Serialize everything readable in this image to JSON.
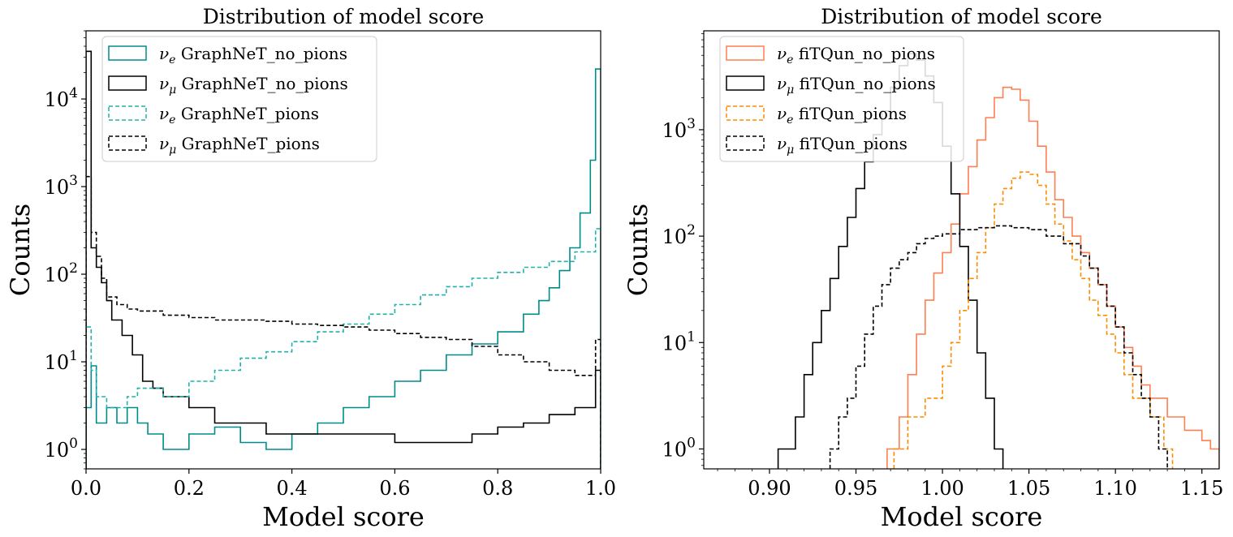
{
  "chart_data": [
    {
      "type": "histogram",
      "title": "Distribution of model score",
      "xlabel": "Model score",
      "ylabel": "Counts",
      "yscale": "log",
      "xlim": [
        0.0,
        1.0
      ],
      "ylim": [
        0.6,
        60000
      ],
      "xticks": [
        "0.0",
        "0.2",
        "0.4",
        "0.6",
        "0.8",
        "1.0"
      ],
      "xtick_values": [
        0.0,
        0.2,
        0.4,
        0.6,
        0.8,
        1.0
      ],
      "yticks": [
        {
          "base": "10",
          "exp": "0",
          "value": 1
        },
        {
          "base": "10",
          "exp": "1",
          "value": 10
        },
        {
          "base": "10",
          "exp": "2",
          "value": 100
        },
        {
          "base": "10",
          "exp": "3",
          "value": 1000
        },
        {
          "base": "10",
          "exp": "4",
          "value": 10000
        }
      ],
      "legend_position": "top-left",
      "series": [
        {
          "name": "GraphNeT_no_pions",
          "nu": "e",
          "color": "#008b8b",
          "dashed": false,
          "points": [
            [
              0.0,
              3
            ],
            [
              0.01,
              9
            ],
            [
              0.02,
              2
            ],
            [
              0.04,
              3
            ],
            [
              0.06,
              2
            ],
            [
              0.08,
              3
            ],
            [
              0.1,
              2
            ],
            [
              0.12,
              1.5
            ],
            [
              0.15,
              1
            ],
            [
              0.2,
              1.5
            ],
            [
              0.25,
              1.8
            ],
            [
              0.3,
              1.2
            ],
            [
              0.35,
              1
            ],
            [
              0.4,
              1.5
            ],
            [
              0.45,
              2
            ],
            [
              0.5,
              3
            ],
            [
              0.55,
              4
            ],
            [
              0.6,
              6
            ],
            [
              0.65,
              8
            ],
            [
              0.7,
              12
            ],
            [
              0.75,
              16
            ],
            [
              0.8,
              22
            ],
            [
              0.85,
              35
            ],
            [
              0.88,
              50
            ],
            [
              0.9,
              70
            ],
            [
              0.92,
              110
            ],
            [
              0.94,
              200
            ],
            [
              0.96,
              500
            ],
            [
              0.98,
              2000
            ],
            [
              0.99,
              22000
            ]
          ]
        },
        {
          "name": "GraphNeT_no_pions",
          "nu": "μ",
          "color": "#000000",
          "dashed": false,
          "points": [
            [
              0.0,
              35000
            ],
            [
              0.01,
              200
            ],
            [
              0.02,
              120
            ],
            [
              0.03,
              80
            ],
            [
              0.04,
              50
            ],
            [
              0.05,
              30
            ],
            [
              0.07,
              20
            ],
            [
              0.09,
              12
            ],
            [
              0.11,
              6
            ],
            [
              0.13,
              5
            ],
            [
              0.15,
              4
            ],
            [
              0.2,
              3
            ],
            [
              0.25,
              2
            ],
            [
              0.3,
              2
            ],
            [
              0.35,
              1.5
            ],
            [
              0.4,
              1.5
            ],
            [
              0.45,
              1.5
            ],
            [
              0.5,
              1.5
            ],
            [
              0.55,
              1.5
            ],
            [
              0.6,
              1.2
            ],
            [
              0.65,
              1.2
            ],
            [
              0.7,
              1.2
            ],
            [
              0.75,
              1.5
            ],
            [
              0.8,
              1.8
            ],
            [
              0.85,
              2
            ],
            [
              0.9,
              2.5
            ],
            [
              0.95,
              3
            ],
            [
              0.99,
              8
            ]
          ]
        },
        {
          "name": "GraphNeT_pions",
          "nu": "e",
          "color": "#20b2aa",
          "dashed": true,
          "points": [
            [
              0.0,
              25
            ],
            [
              0.01,
              8
            ],
            [
              0.02,
              4
            ],
            [
              0.04,
              3
            ],
            [
              0.06,
              3
            ],
            [
              0.08,
              4
            ],
            [
              0.1,
              5
            ],
            [
              0.12,
              5
            ],
            [
              0.15,
              4
            ],
            [
              0.2,
              6
            ],
            [
              0.25,
              8
            ],
            [
              0.3,
              11
            ],
            [
              0.35,
              13
            ],
            [
              0.4,
              17
            ],
            [
              0.45,
              22
            ],
            [
              0.5,
              27
            ],
            [
              0.55,
              35
            ],
            [
              0.6,
              45
            ],
            [
              0.65,
              58
            ],
            [
              0.7,
              72
            ],
            [
              0.75,
              90
            ],
            [
              0.8,
              105
            ],
            [
              0.85,
              120
            ],
            [
              0.9,
              140
            ],
            [
              0.95,
              180
            ],
            [
              0.99,
              330
            ]
          ]
        },
        {
          "name": "GraphNeT_pions",
          "nu": "μ",
          "color": "#000000",
          "dashed": true,
          "points": [
            [
              0.0,
              1300
            ],
            [
              0.01,
              300
            ],
            [
              0.02,
              160
            ],
            [
              0.03,
              90
            ],
            [
              0.04,
              55
            ],
            [
              0.06,
              45
            ],
            [
              0.08,
              40
            ],
            [
              0.1,
              38
            ],
            [
              0.15,
              34
            ],
            [
              0.2,
              32
            ],
            [
              0.25,
              30
            ],
            [
              0.3,
              30
            ],
            [
              0.35,
              29
            ],
            [
              0.4,
              27
            ],
            [
              0.45,
              26
            ],
            [
              0.5,
              25
            ],
            [
              0.55,
              23
            ],
            [
              0.6,
              21
            ],
            [
              0.65,
              19
            ],
            [
              0.7,
              18
            ],
            [
              0.75,
              15
            ],
            [
              0.8,
              12
            ],
            [
              0.85,
              10
            ],
            [
              0.9,
              8
            ],
            [
              0.95,
              7
            ],
            [
              0.99,
              18
            ]
          ]
        }
      ]
    },
    {
      "type": "histogram",
      "title": "Distribution of model score",
      "xlabel": "Model score",
      "ylabel": "Counts",
      "yscale": "log",
      "xlim": [
        0.862,
        1.16
      ],
      "ylim": [
        0.65,
        8500
      ],
      "xticks": [
        "0.90",
        "0.95",
        "1.00",
        "1.05",
        "1.10",
        "1.15"
      ],
      "xtick_values": [
        0.9,
        0.95,
        1.0,
        1.05,
        1.1,
        1.15
      ],
      "yticks": [
        {
          "base": "10",
          "exp": "0",
          "value": 1
        },
        {
          "base": "10",
          "exp": "1",
          "value": 10
        },
        {
          "base": "10",
          "exp": "2",
          "value": 100
        },
        {
          "base": "10",
          "exp": "3",
          "value": 1000
        }
      ],
      "legend_position": "top-left",
      "series": [
        {
          "name": "fiTQun_no_pions",
          "nu": "e",
          "color": "#ff7f50",
          "dashed": false,
          "points": [
            [
              0.968,
              1
            ],
            [
              0.975,
              2
            ],
            [
              0.98,
              5
            ],
            [
              0.985,
              12
            ],
            [
              0.99,
              25
            ],
            [
              0.995,
              45
            ],
            [
              1.0,
              70
            ],
            [
              1.005,
              130
            ],
            [
              1.01,
              250
            ],
            [
              1.015,
              450
            ],
            [
              1.02,
              800
            ],
            [
              1.025,
              1300
            ],
            [
              1.03,
              2000
            ],
            [
              1.035,
              2500
            ],
            [
              1.04,
              2400
            ],
            [
              1.045,
              1900
            ],
            [
              1.05,
              1200
            ],
            [
              1.055,
              700
            ],
            [
              1.06,
              400
            ],
            [
              1.065,
              220
            ],
            [
              1.07,
              150
            ],
            [
              1.075,
              100
            ],
            [
              1.08,
              70
            ],
            [
              1.085,
              50
            ],
            [
              1.09,
              35
            ],
            [
              1.095,
              22
            ],
            [
              1.1,
              14
            ],
            [
              1.105,
              9
            ],
            [
              1.11,
              6
            ],
            [
              1.115,
              4
            ],
            [
              1.12,
              3
            ],
            [
              1.13,
              2
            ],
            [
              1.14,
              1.5
            ],
            [
              1.15,
              1.2
            ],
            [
              1.155,
              1
            ]
          ]
        },
        {
          "name": "fiTQun_no_pions",
          "nu": "μ",
          "color": "#000000",
          "dashed": false,
          "points": [
            [
              0.905,
              1
            ],
            [
              0.91,
              1
            ],
            [
              0.915,
              2
            ],
            [
              0.92,
              5
            ],
            [
              0.925,
              10
            ],
            [
              0.93,
              20
            ],
            [
              0.935,
              40
            ],
            [
              0.94,
              80
            ],
            [
              0.945,
              150
            ],
            [
              0.95,
              280
            ],
            [
              0.955,
              500
            ],
            [
              0.96,
              900
            ],
            [
              0.965,
              1500
            ],
            [
              0.97,
              2500
            ],
            [
              0.975,
              4000
            ],
            [
              0.98,
              5200
            ],
            [
              0.985,
              4500
            ],
            [
              0.99,
              3200
            ],
            [
              0.995,
              1800
            ],
            [
              1.0,
              700
            ],
            [
              1.005,
              250
            ],
            [
              1.01,
              80
            ],
            [
              1.015,
              25
            ],
            [
              1.02,
              8
            ],
            [
              1.025,
              3
            ],
            [
              1.03,
              1
            ]
          ]
        },
        {
          "name": "fiTQun_pions",
          "nu": "e",
          "color": "#ff8c00",
          "dashed": true,
          "points": [
            [
              0.972,
              1
            ],
            [
              0.98,
              2
            ],
            [
              0.99,
              3
            ],
            [
              1.0,
              6
            ],
            [
              1.005,
              10
            ],
            [
              1.01,
              20
            ],
            [
              1.015,
              40
            ],
            [
              1.02,
              70
            ],
            [
              1.025,
              120
            ],
            [
              1.03,
              200
            ],
            [
              1.035,
              280
            ],
            [
              1.04,
              350
            ],
            [
              1.045,
              400
            ],
            [
              1.05,
              380
            ],
            [
              1.055,
              300
            ],
            [
              1.06,
              200
            ],
            [
              1.065,
              130
            ],
            [
              1.07,
              90
            ],
            [
              1.075,
              60
            ],
            [
              1.08,
              40
            ],
            [
              1.085,
              25
            ],
            [
              1.09,
              18
            ],
            [
              1.095,
              12
            ],
            [
              1.1,
              8
            ],
            [
              1.105,
              5
            ],
            [
              1.11,
              3
            ],
            [
              1.12,
              2
            ],
            [
              1.128,
              1
            ]
          ]
        },
        {
          "name": "fiTQun_pions",
          "nu": "μ",
          "color": "#000000",
          "dashed": true,
          "points": [
            [
              0.935,
              1
            ],
            [
              0.94,
              2
            ],
            [
              0.945,
              3
            ],
            [
              0.95,
              6
            ],
            [
              0.955,
              12
            ],
            [
              0.96,
              22
            ],
            [
              0.965,
              35
            ],
            [
              0.97,
              50
            ],
            [
              0.975,
              60
            ],
            [
              0.98,
              70
            ],
            [
              0.985,
              85
            ],
            [
              0.99,
              95
            ],
            [
              0.995,
              100
            ],
            [
              1.0,
              105
            ],
            [
              1.01,
              115
            ],
            [
              1.02,
              120
            ],
            [
              1.03,
              125
            ],
            [
              1.04,
              120
            ],
            [
              1.05,
              115
            ],
            [
              1.06,
              100
            ],
            [
              1.07,
              85
            ],
            [
              1.08,
              65
            ],
            [
              1.085,
              50
            ],
            [
              1.09,
              35
            ],
            [
              1.095,
              22
            ],
            [
              1.1,
              14
            ],
            [
              1.105,
              8
            ],
            [
              1.11,
              5
            ],
            [
              1.115,
              3
            ],
            [
              1.12,
              2
            ],
            [
              1.125,
              1
            ]
          ]
        }
      ]
    }
  ]
}
